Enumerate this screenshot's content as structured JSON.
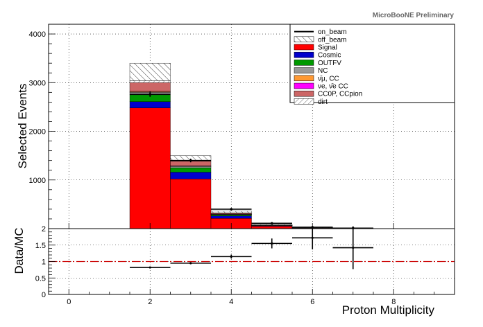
{
  "label_text": "MicroBooNE Preliminary",
  "colors": {
    "Signal": "#ff0000",
    "Cosmic": "#0000cc",
    "OUTFV": "#009900",
    "NC": "#999999",
    "numu_CC": "#ff9933",
    "nue_CC": "#ff00ff",
    "CC0P_CCpion": "#cc6666",
    "dirt": "#ffffff",
    "ratio_line": "#cc0000"
  },
  "chart_data": [
    {
      "type": "bar",
      "stacked": true,
      "ylabel": "Selected Events",
      "ylim": [
        0,
        4200
      ],
      "yticks": [
        1000,
        2000,
        3000,
        4000
      ],
      "xlim": [
        -0.5,
        9.5
      ],
      "grid": true,
      "legend_placement": "top-right",
      "x": [
        2,
        3,
        4,
        5,
        6,
        7
      ],
      "series": [
        {
          "name": "Signal",
          "color_key": "Signal",
          "values": [
            2480,
            1020,
            210,
            50,
            12,
            3
          ]
        },
        {
          "name": "Cosmic",
          "color_key": "Cosmic",
          "values": [
            130,
            140,
            50,
            10,
            3,
            1
          ]
        },
        {
          "name": "OUTFV",
          "color_key": "OUTFV",
          "values": [
            140,
            90,
            25,
            5,
            1,
            0
          ]
        },
        {
          "name": "NC",
          "color_key": "NC",
          "values": [
            50,
            30,
            10,
            2,
            1,
            0
          ]
        },
        {
          "name": "ν̄μ CC",
          "color_key": "numu_CC",
          "values": [
            15,
            6,
            3,
            1,
            0,
            0
          ]
        },
        {
          "name": "νe, ν̄e CC",
          "color_key": "nue_CC",
          "values": [
            10,
            4,
            2,
            0,
            0,
            0
          ]
        },
        {
          "name": "CC0P, CCpion",
          "color_key": "CC0P_CCpion",
          "values": [
            175,
            95,
            20,
            4,
            1,
            0
          ]
        },
        {
          "name": "dirt",
          "color_key": "dirt",
          "values": [
            40,
            15,
            5,
            1,
            0,
            0
          ]
        },
        {
          "name": "off_beam",
          "color_key": "dirt",
          "hatched": true,
          "values": [
            360,
            100,
            35,
            12,
            5,
            3
          ]
        }
      ],
      "data": {
        "name": "on_beam",
        "x": [
          2,
          3,
          4,
          5,
          6,
          7
        ],
        "y": [
          2760,
          1400,
          400,
          110,
          30,
          10
        ],
        "yerr": [
          52,
          37,
          20,
          10,
          6,
          3
        ]
      },
      "legend": [
        "on_beam",
        "off_beam",
        "Signal",
        "Cosmic",
        "OUTFV",
        "NC",
        "ν̄μ, CC",
        "νe, ν̄e CC",
        "CC0P, CCpion",
        "dirt"
      ]
    },
    {
      "type": "scatter",
      "xlabel": "Proton Multiplicity",
      "ylabel": "Data/MC",
      "ylim": [
        0,
        2
      ],
      "yticks": [
        0,
        0.5,
        1,
        1.5,
        2
      ],
      "xticks": [
        0,
        2,
        4,
        6,
        8
      ],
      "xlim": [
        -0.5,
        9.5
      ],
      "grid": true,
      "reference_line": 1.0,
      "points": [
        {
          "x": 2,
          "y": 0.82,
          "yerr": 0.02
        },
        {
          "x": 3,
          "y": 0.95,
          "yerr": 0.03
        },
        {
          "x": 4,
          "y": 1.15,
          "yerr": 0.06
        },
        {
          "x": 5,
          "y": 1.55,
          "yerr": 0.15
        },
        {
          "x": 6,
          "y": 1.72,
          "yerr": 0.35
        },
        {
          "x": 7,
          "y": 1.42,
          "yerr": 0.65
        }
      ]
    }
  ]
}
